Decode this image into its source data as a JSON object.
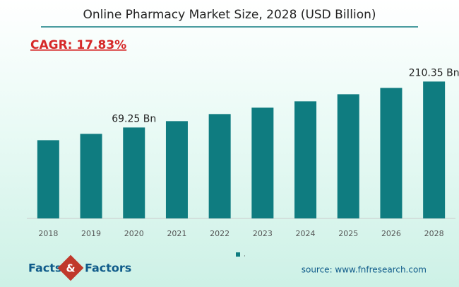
{
  "chart_data": {
    "type": "bar",
    "title": "Online Pharmacy Market Size, 2028 (USD Billion)",
    "annotation": "CAGR: 17.83%",
    "categories": [
      "2018",
      "2019",
      "2020",
      "2021",
      "2022",
      "2023",
      "2024",
      "2025",
      "2026",
      "2028"
    ],
    "series": [
      {
        "name": ".",
        "color": "#0f7c80",
        "values": [
          30.2,
          49.7,
          69.25,
          88.8,
          110.5,
          130.1,
          149.6,
          171.3,
          190.9,
          210.35
        ],
        "value_labels": [
          null,
          null,
          "69.25 Bn",
          null,
          null,
          null,
          null,
          null,
          null,
          "210.35 Bn"
        ]
      }
    ],
    "ylim": [
      -210,
      240
    ],
    "source": "source: www.fnfresearch.com",
    "logo": {
      "left": "Facts",
      "mid": "&",
      "right": "Factors"
    }
  }
}
